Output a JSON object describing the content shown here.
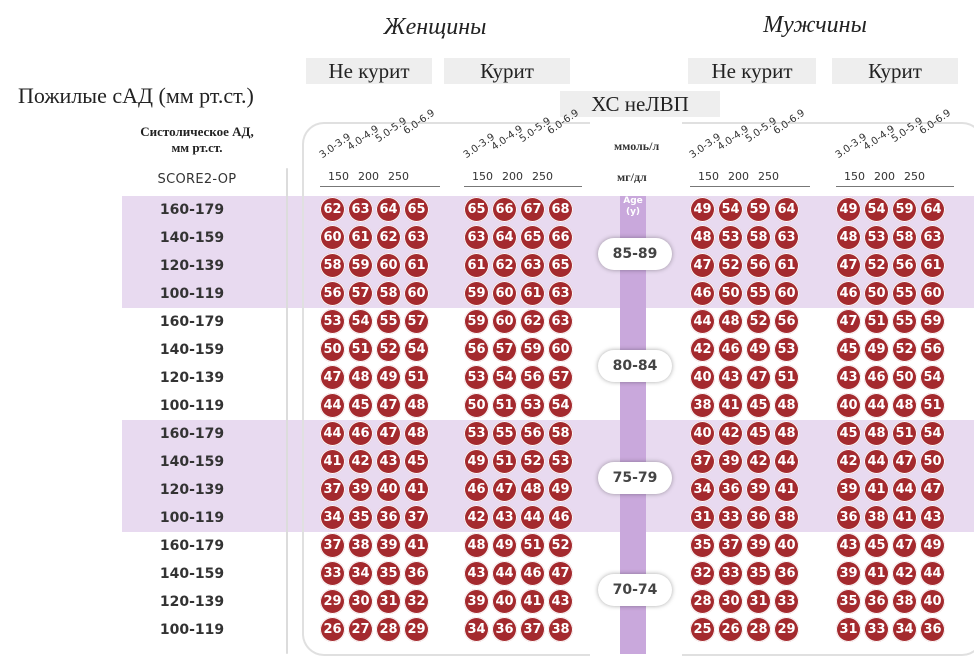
{
  "header": {
    "women": "Женщины",
    "men": "Мужчины",
    "non_smoker": "Не курит",
    "smoker": "Курит",
    "non_hdl": "ХС неЛВП",
    "elderly_sbp": "Пожилые сАД (мм рт.ст.)",
    "sbp_label": "Систолическое АД,\nмм рт.ст.",
    "score_label": "SCORE2-OP",
    "unit_mmol": "ммоль/л",
    "unit_mg": "мг/дл",
    "age_icon": "Age\n(y)"
  },
  "chol_ticks": [
    "3.0-3.9",
    "4.0-4.9",
    "5.0-5.9",
    "6.0-6.9"
  ],
  "mg_ticks": [
    "150",
    "200",
    "250"
  ],
  "colors": {
    "circle": "#a42a2e",
    "band_purple": "#e8daf0",
    "age_bar": "#c9a8dc"
  },
  "chart_data": {
    "type": "table",
    "title": "Пожилые сАД (мм рт.ст.)",
    "sbp_categories": [
      "160-179",
      "140-159",
      "120-139",
      "100-119"
    ],
    "columns": [
      "Женщины Не курит",
      "Женщины Курит",
      "Мужчины Не курит",
      "Мужчины Курит"
    ],
    "age_groups": [
      {
        "age": "85-89",
        "rows": [
          [
            [
              62,
              63,
              64,
              65
            ],
            [
              65,
              66,
              67,
              68
            ],
            [
              49,
              54,
              59,
              64
            ],
            [
              49,
              54,
              59,
              64
            ]
          ],
          [
            [
              60,
              61,
              62,
              63
            ],
            [
              63,
              64,
              65,
              66
            ],
            [
              48,
              53,
              58,
              63
            ],
            [
              48,
              53,
              58,
              63
            ]
          ],
          [
            [
              58,
              59,
              60,
              61
            ],
            [
              61,
              62,
              63,
              65
            ],
            [
              47,
              52,
              56,
              61
            ],
            [
              47,
              52,
              56,
              61
            ]
          ],
          [
            [
              56,
              57,
              58,
              60
            ],
            [
              59,
              60,
              61,
              63
            ],
            [
              46,
              50,
              55,
              60
            ],
            [
              46,
              50,
              55,
              60
            ]
          ]
        ]
      },
      {
        "age": "80-84",
        "rows": [
          [
            [
              53,
              54,
              55,
              57
            ],
            [
              59,
              60,
              62,
              63
            ],
            [
              44,
              48,
              52,
              56
            ],
            [
              47,
              51,
              55,
              59
            ]
          ],
          [
            [
              50,
              51,
              52,
              54
            ],
            [
              56,
              57,
              59,
              60
            ],
            [
              42,
              46,
              49,
              53
            ],
            [
              45,
              49,
              52,
              56
            ]
          ],
          [
            [
              47,
              48,
              49,
              51
            ],
            [
              53,
              54,
              56,
              57
            ],
            [
              40,
              43,
              47,
              51
            ],
            [
              43,
              46,
              50,
              54
            ]
          ],
          [
            [
              44,
              45,
              47,
              48
            ],
            [
              50,
              51,
              53,
              54
            ],
            [
              38,
              41,
              45,
              48
            ],
            [
              40,
              44,
              48,
              51
            ]
          ]
        ]
      },
      {
        "age": "75-79",
        "rows": [
          [
            [
              44,
              46,
              47,
              48
            ],
            [
              53,
              55,
              56,
              58
            ],
            [
              40,
              42,
              45,
              48
            ],
            [
              45,
              48,
              51,
              54
            ]
          ],
          [
            [
              41,
              42,
              43,
              45
            ],
            [
              49,
              51,
              52,
              53
            ],
            [
              37,
              39,
              42,
              44
            ],
            [
              42,
              44,
              47,
              50
            ]
          ],
          [
            [
              37,
              39,
              40,
              41
            ],
            [
              46,
              47,
              48,
              49
            ],
            [
              34,
              36,
              39,
              41
            ],
            [
              39,
              41,
              44,
              47
            ]
          ],
          [
            [
              34,
              35,
              36,
              37
            ],
            [
              42,
              43,
              44,
              46
            ],
            [
              31,
              33,
              36,
              38
            ],
            [
              36,
              38,
              41,
              43
            ]
          ]
        ]
      },
      {
        "age": "70-74",
        "rows": [
          [
            [
              37,
              38,
              39,
              41
            ],
            [
              48,
              49,
              51,
              52
            ],
            [
              35,
              37,
              39,
              40
            ],
            [
              43,
              45,
              47,
              49
            ]
          ],
          [
            [
              33,
              34,
              35,
              36
            ],
            [
              43,
              44,
              46,
              47
            ],
            [
              32,
              33,
              35,
              36
            ],
            [
              39,
              41,
              42,
              44
            ]
          ],
          [
            [
              29,
              30,
              31,
              32
            ],
            [
              39,
              40,
              41,
              43
            ],
            [
              28,
              30,
              31,
              33
            ],
            [
              35,
              36,
              38,
              40
            ]
          ],
          [
            [
              26,
              27,
              28,
              29
            ],
            [
              34,
              36,
              37,
              38
            ],
            [
              25,
              26,
              28,
              29
            ],
            [
              31,
              33,
              34,
              36
            ]
          ]
        ]
      }
    ]
  }
}
